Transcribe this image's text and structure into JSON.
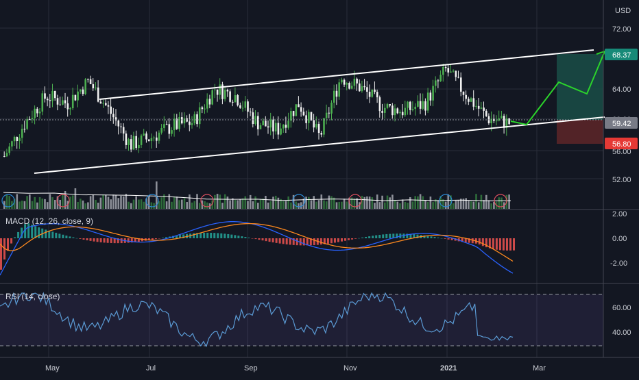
{
  "colors": {
    "background": "#131722",
    "grid": "#2a2e39",
    "text": "#c9ccd3",
    "up": "#4caf50",
    "down": "#f0f0f0",
    "channel": "#ffffff",
    "projection": "#2bd42b",
    "macd_line": "#2962ff",
    "signal_line": "#ff8a1f",
    "rsi_line": "#5b9bd5",
    "target_zone": "#1a4a45",
    "stop_zone": "#5a2528",
    "last_price_bg": "#787b86",
    "target_bg": "#178a78",
    "stop_bg": "#e53935"
  },
  "axis": {
    "currency": "USD",
    "x_labels": [
      "May",
      "Jul",
      "Sep",
      "Nov",
      "2021",
      "Mar"
    ],
    "price_ticks": [
      "72.00",
      "64.00",
      "60.00",
      "56.00",
      "52.00"
    ],
    "macd_ticks": [
      "2.00",
      "0.00",
      "-2.00"
    ],
    "rsi_ticks": [
      "60.00",
      "40.00"
    ]
  },
  "price_tags": {
    "last": "59.42",
    "target": "68.37",
    "stop": "56.80"
  },
  "panes": {
    "macd_title": "MACD (12, 26, close, 9)",
    "rsi_title": "RSI (14, close)"
  },
  "chart_data": {
    "type": "candlestick",
    "price_range": [
      50,
      74
    ],
    "x_range": [
      "Apr 2020",
      "Mar 2021"
    ],
    "price_path_approx": [
      [
        "Apr 1",
        55.0
      ],
      [
        "Apr 20",
        59.5
      ],
      [
        "May 5",
        63.0
      ],
      [
        "May 15",
        62.0
      ],
      [
        "May 28",
        65.0
      ],
      [
        "Jun 10",
        61.0
      ],
      [
        "Jun 20",
        56.5
      ],
      [
        "Jul 1",
        57.5
      ],
      [
        "Jul 15",
        59.0
      ],
      [
        "Aug 1",
        59.5
      ],
      [
        "Aug 12",
        64.0
      ],
      [
        "Aug 25",
        63.0
      ],
      [
        "Sep 10",
        59.5
      ],
      [
        "Sep 25",
        58.5
      ],
      [
        "Oct 10",
        62.0
      ],
      [
        "Oct 28",
        57.5
      ],
      [
        "Nov 5",
        65.5
      ],
      [
        "Nov 20",
        64.0
      ],
      [
        "Dec 5",
        61.5
      ],
      [
        "Dec 20",
        61.0
      ],
      [
        "Jan 5",
        62.0
      ],
      [
        "Jan 15",
        66.5
      ],
      [
        "Jan 25",
        63.0
      ],
      [
        "Feb 5",
        60.0
      ],
      [
        "Feb 12",
        59.4
      ]
    ],
    "channel": {
      "upper": [
        [
          "Jun 1",
          61.0
        ],
        [
          "Mar 25",
          70.0
        ]
      ],
      "lower": [
        [
          "Apr 10",
          54.5
        ],
        [
          "Mar 25",
          62.0
        ]
      ]
    },
    "projection": [
      [
        "Feb 12",
        59.4
      ],
      [
        "Feb 20",
        59.2
      ],
      [
        "Mar 5",
        65.5
      ],
      [
        "Mar 15",
        63.5
      ],
      [
        "Mar 25",
        68.4
      ]
    ],
    "target_zone": [
      59.4,
      68.37
    ],
    "stop_zone": [
      56.8,
      59.4
    ],
    "macd_range": [
      -3,
      2.5
    ],
    "rsi_range": [
      25,
      72
    ],
    "rsi_bands": [
      70,
      30
    ]
  }
}
